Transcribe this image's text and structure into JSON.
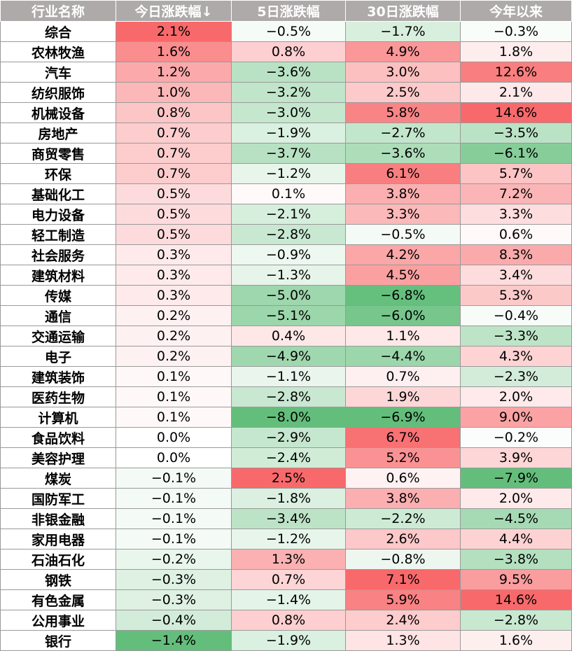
{
  "table": {
    "headers": [
      "行业名称",
      "今日涨跌幅↓",
      "5日涨跌幅",
      "30日涨跌幅",
      "今年以来"
    ],
    "rows": [
      {
        "name": "综合",
        "values": [
          2.1,
          -0.5,
          -1.7,
          -0.3
        ]
      },
      {
        "name": "农林牧渔",
        "values": [
          1.6,
          0.8,
          4.9,
          1.8
        ]
      },
      {
        "name": "汽车",
        "values": [
          1.2,
          -3.6,
          3.0,
          12.6
        ]
      },
      {
        "name": "纺织服饰",
        "values": [
          1.0,
          -3.2,
          2.5,
          2.1
        ]
      },
      {
        "name": "机械设备",
        "values": [
          0.8,
          -3.0,
          5.8,
          14.6
        ]
      },
      {
        "name": "房地产",
        "values": [
          0.7,
          -1.9,
          -2.7,
          -3.5
        ]
      },
      {
        "name": "商贸零售",
        "values": [
          0.7,
          -3.7,
          -3.6,
          -6.1
        ]
      },
      {
        "name": "环保",
        "values": [
          0.7,
          -1.2,
          6.1,
          5.7
        ]
      },
      {
        "name": "基础化工",
        "values": [
          0.5,
          0.1,
          3.8,
          7.2
        ]
      },
      {
        "name": "电力设备",
        "values": [
          0.5,
          -2.1,
          3.3,
          3.3
        ]
      },
      {
        "name": "轻工制造",
        "values": [
          0.5,
          -2.8,
          -0.5,
          0.6
        ]
      },
      {
        "name": "社会服务",
        "values": [
          0.3,
          -0.9,
          4.2,
          8.3
        ]
      },
      {
        "name": "建筑材料",
        "values": [
          0.3,
          -1.3,
          4.5,
          3.4
        ]
      },
      {
        "name": "传媒",
        "values": [
          0.3,
          -5.0,
          -6.8,
          5.3
        ]
      },
      {
        "name": "通信",
        "values": [
          0.2,
          -5.1,
          -6.0,
          -0.4
        ]
      },
      {
        "name": "交通运输",
        "values": [
          0.2,
          0.4,
          1.1,
          -3.3
        ]
      },
      {
        "name": "电子",
        "values": [
          0.2,
          -4.9,
          -4.4,
          4.3
        ]
      },
      {
        "name": "建筑装饰",
        "values": [
          0.1,
          -1.1,
          0.7,
          -2.3
        ]
      },
      {
        "name": "医药生物",
        "values": [
          0.1,
          -2.8,
          1.9,
          2.0
        ]
      },
      {
        "name": "计算机",
        "values": [
          0.1,
          -8.0,
          -6.9,
          9.0
        ]
      },
      {
        "name": "食品饮料",
        "values": [
          0.0,
          -2.9,
          6.7,
          -0.2
        ]
      },
      {
        "name": "美容护理",
        "values": [
          0.0,
          -2.4,
          5.2,
          3.9
        ]
      },
      {
        "name": "煤炭",
        "values": [
          -0.1,
          2.5,
          0.6,
          -7.9
        ]
      },
      {
        "name": "国防军工",
        "values": [
          -0.1,
          -1.8,
          3.8,
          2.0
        ]
      },
      {
        "name": "非银金融",
        "values": [
          -0.1,
          -3.4,
          -2.2,
          -4.5
        ]
      },
      {
        "name": "家用电器",
        "values": [
          -0.1,
          -1.2,
          2.6,
          4.4
        ]
      },
      {
        "name": "石油石化",
        "values": [
          -0.2,
          1.3,
          -0.8,
          -3.8
        ]
      },
      {
        "name": "钢铁",
        "values": [
          -0.3,
          0.7,
          7.1,
          9.5
        ]
      },
      {
        "name": "有色金属",
        "values": [
          -0.3,
          -1.4,
          5.9,
          14.6
        ]
      },
      {
        "name": "公用事业",
        "values": [
          -0.4,
          0.8,
          2.4,
          -2.8
        ]
      },
      {
        "name": "银行",
        "values": [
          -1.4,
          -1.9,
          1.3,
          1.6
        ]
      }
    ]
  },
  "colors": {
    "header_bg": "#aeaaaa",
    "header_text": "#ffffff",
    "positive": "#f8696b",
    "negative": "#63be7b",
    "neutral": "#ffffff"
  }
}
